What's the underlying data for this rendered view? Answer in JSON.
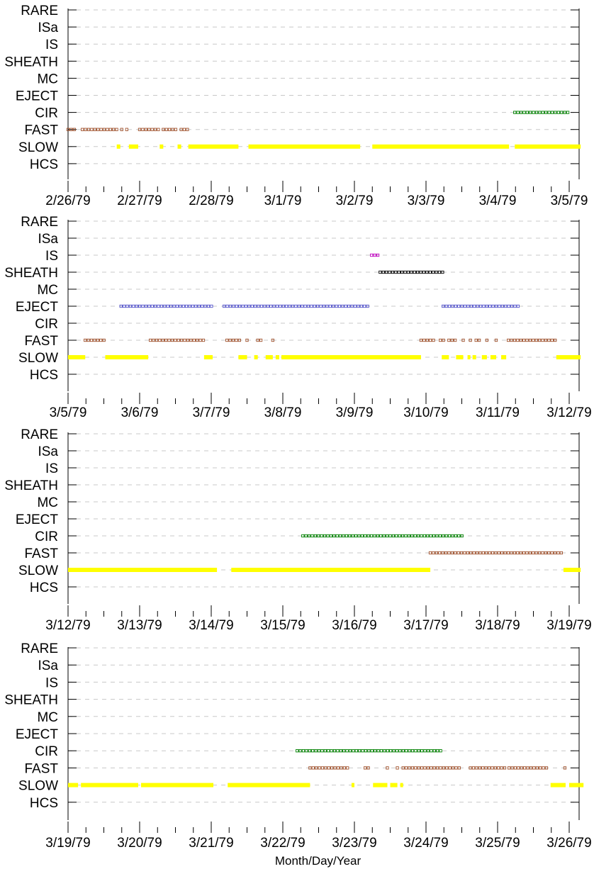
{
  "chart_data": [
    {
      "type": "scatter",
      "panel": 1,
      "categories": [
        "HCS",
        "SLOW",
        "FAST",
        "CIR",
        "EJECT",
        "MC",
        "SHEATH",
        "IS",
        "ISa",
        "RARE"
      ],
      "x_tick_labels": [
        "2/26/79",
        "2/27/79",
        "2/28/79",
        "3/1/79",
        "3/2/79",
        "3/3/79",
        "3/4/79",
        "3/5/79"
      ],
      "x_range": [
        "2/26/79",
        "3/5/79"
      ],
      "xlabel": "",
      "ylabel": "",
      "grid": "dashed horizontal",
      "series": [
        {
          "category": "SLOW",
          "color": "#ffff00",
          "marker": "bar",
          "segments": [
            [
              0.68,
              0.73
            ],
            [
              0.85,
              0.98
            ],
            [
              1.28,
              1.33
            ],
            [
              1.53,
              1.58
            ],
            [
              1.68,
              2.38
            ],
            [
              2.52,
              4.08
            ],
            [
              4.25,
              6.16
            ],
            [
              6.24,
              7.16
            ]
          ]
        },
        {
          "category": "FAST",
          "color": "#a0522d",
          "marker": "square",
          "segments": [
            [
              0.0,
              0.1
            ],
            [
              0.2,
              0.68
            ],
            [
              0.75,
              0.78
            ],
            [
              0.82,
              0.85
            ],
            [
              1.0,
              1.28
            ],
            [
              1.33,
              1.53
            ],
            [
              1.58,
              1.7
            ]
          ]
        },
        {
          "category": "CIR",
          "color": "#008000",
          "marker": "square",
          "segments": [
            [
              6.24,
              6.98
            ]
          ]
        }
      ]
    },
    {
      "type": "scatter",
      "panel": 2,
      "categories": [
        "HCS",
        "SLOW",
        "FAST",
        "CIR",
        "EJECT",
        "MC",
        "SHEATH",
        "IS",
        "ISa",
        "RARE"
      ],
      "x_tick_labels": [
        "3/5/79",
        "3/6/79",
        "3/7/79",
        "3/8/79",
        "3/9/79",
        "3/10/79",
        "3/11/79",
        "3/12/79"
      ],
      "x_range": [
        "3/5/79",
        "3/12/79"
      ],
      "xlabel": "",
      "ylabel": "",
      "grid": "dashed horizontal",
      "series": [
        {
          "category": "SLOW",
          "color": "#ffff00",
          "marker": "bar",
          "segments": [
            [
              0.0,
              0.24
            ],
            [
              0.52,
              1.12
            ],
            [
              1.9,
              2.02
            ],
            [
              2.38,
              2.5
            ],
            [
              2.6,
              2.65
            ],
            [
              2.76,
              2.86
            ],
            [
              2.9,
              2.95
            ],
            [
              2.98,
              4.93
            ],
            [
              5.22,
              5.32
            ],
            [
              5.42,
              5.52
            ],
            [
              5.58,
              5.62
            ],
            [
              5.65,
              5.7
            ],
            [
              5.78,
              5.85
            ],
            [
              5.9,
              5.98
            ],
            [
              6.05,
              6.12
            ],
            [
              6.82,
              7.16
            ]
          ]
        },
        {
          "category": "FAST",
          "color": "#a0522d",
          "marker": "square",
          "segments": [
            [
              0.24,
              0.52
            ],
            [
              1.15,
              1.9
            ],
            [
              2.22,
              2.4
            ],
            [
              2.5,
              2.52
            ],
            [
              2.65,
              2.7
            ],
            [
              2.86,
              2.88
            ],
            [
              4.93,
              5.1
            ],
            [
              5.2,
              5.25
            ],
            [
              5.32,
              5.42
            ],
            [
              5.52,
              5.55
            ],
            [
              5.62,
              5.65
            ],
            [
              5.7,
              5.78
            ],
            [
              5.85,
              5.88
            ],
            [
              5.98,
              6.0
            ],
            [
              6.15,
              6.82
            ]
          ]
        },
        {
          "category": "EJECT",
          "color": "#5555cc",
          "marker": "square",
          "segments": [
            [
              0.74,
              2.0
            ],
            [
              2.18,
              4.2
            ],
            [
              5.24,
              6.3
            ]
          ]
        },
        {
          "category": "SHEATH",
          "color": "#000000",
          "marker": "square",
          "segments": [
            [
              4.36,
              5.24
            ]
          ]
        },
        {
          "category": "IS",
          "color": "#c000c0",
          "marker": "square",
          "segments": [
            [
              4.24,
              4.36
            ]
          ]
        }
      ]
    },
    {
      "type": "scatter",
      "panel": 3,
      "categories": [
        "HCS",
        "SLOW",
        "FAST",
        "EJECT",
        "CIR",
        "MC",
        "SHEATH",
        "IS",
        "ISa",
        "RARE"
      ],
      "category_order_top_to_bottom": [
        "RARE",
        "ISa",
        "IS",
        "SHEATH",
        "MC",
        "EJECT",
        "CIR",
        "FAST",
        "SLOW",
        "HCS"
      ],
      "x_tick_labels": [
        "3/12/79",
        "3/13/79",
        "3/14/79",
        "3/15/79",
        "3/16/79",
        "3/17/79",
        "3/18/79",
        "3/19/79"
      ],
      "x_range": [
        "3/12/79",
        "3/19/79"
      ],
      "xlabel": "",
      "ylabel": "",
      "grid": "dashed horizontal",
      "series": [
        {
          "category": "SLOW",
          "color": "#ffff00",
          "marker": "bar",
          "segments": [
            [
              0.0,
              2.08
            ],
            [
              2.28,
              5.06
            ],
            [
              6.92,
              7.16
            ]
          ]
        },
        {
          "category": "FAST",
          "color": "#a0522d",
          "marker": "square",
          "segments": [
            [
              5.06,
              6.92
            ]
          ]
        },
        {
          "category": "CIR",
          "color": "#008000",
          "marker": "square",
          "segments": [
            [
              3.28,
              5.5
            ]
          ]
        }
      ]
    },
    {
      "type": "scatter",
      "panel": 4,
      "categories": [
        "HCS",
        "SLOW",
        "FAST",
        "CIR",
        "EJECT",
        "MC",
        "SHEATH",
        "IS",
        "ISa",
        "RARE"
      ],
      "x_tick_labels": [
        "3/19/79",
        "3/20/79",
        "3/21/79",
        "3/22/79",
        "3/23/79",
        "3/24/79",
        "3/25/79",
        "3/26/79"
      ],
      "x_range": [
        "3/19/79",
        "3/26/79"
      ],
      "xlabel": "Month/Day/Year",
      "ylabel": "",
      "grid": "dashed horizontal",
      "series": [
        {
          "category": "SLOW",
          "color": "#ffff00",
          "marker": "bar",
          "segments": [
            [
              0.0,
              0.14
            ],
            [
              0.18,
              0.98
            ],
            [
              1.02,
              2.03
            ],
            [
              2.23,
              3.38
            ],
            [
              3.96,
              4.0
            ],
            [
              4.26,
              4.46
            ],
            [
              4.5,
              4.6
            ],
            [
              4.64,
              4.68
            ],
            [
              6.74,
              6.95
            ],
            [
              7.0,
              7.2
            ]
          ]
        },
        {
          "category": "FAST",
          "color": "#a0522d",
          "marker": "square",
          "segments": [
            [
              3.38,
              3.92
            ],
            [
              4.15,
              4.22
            ],
            [
              4.46,
              4.48
            ],
            [
              4.6,
              4.63
            ],
            [
              4.68,
              5.5
            ],
            [
              5.62,
              6.12
            ],
            [
              6.16,
              6.7
            ],
            [
              6.94,
              6.97
            ]
          ]
        },
        {
          "category": "CIR",
          "color": "#008000",
          "marker": "square",
          "segments": [
            [
              3.2,
              5.24
            ]
          ]
        }
      ]
    }
  ]
}
